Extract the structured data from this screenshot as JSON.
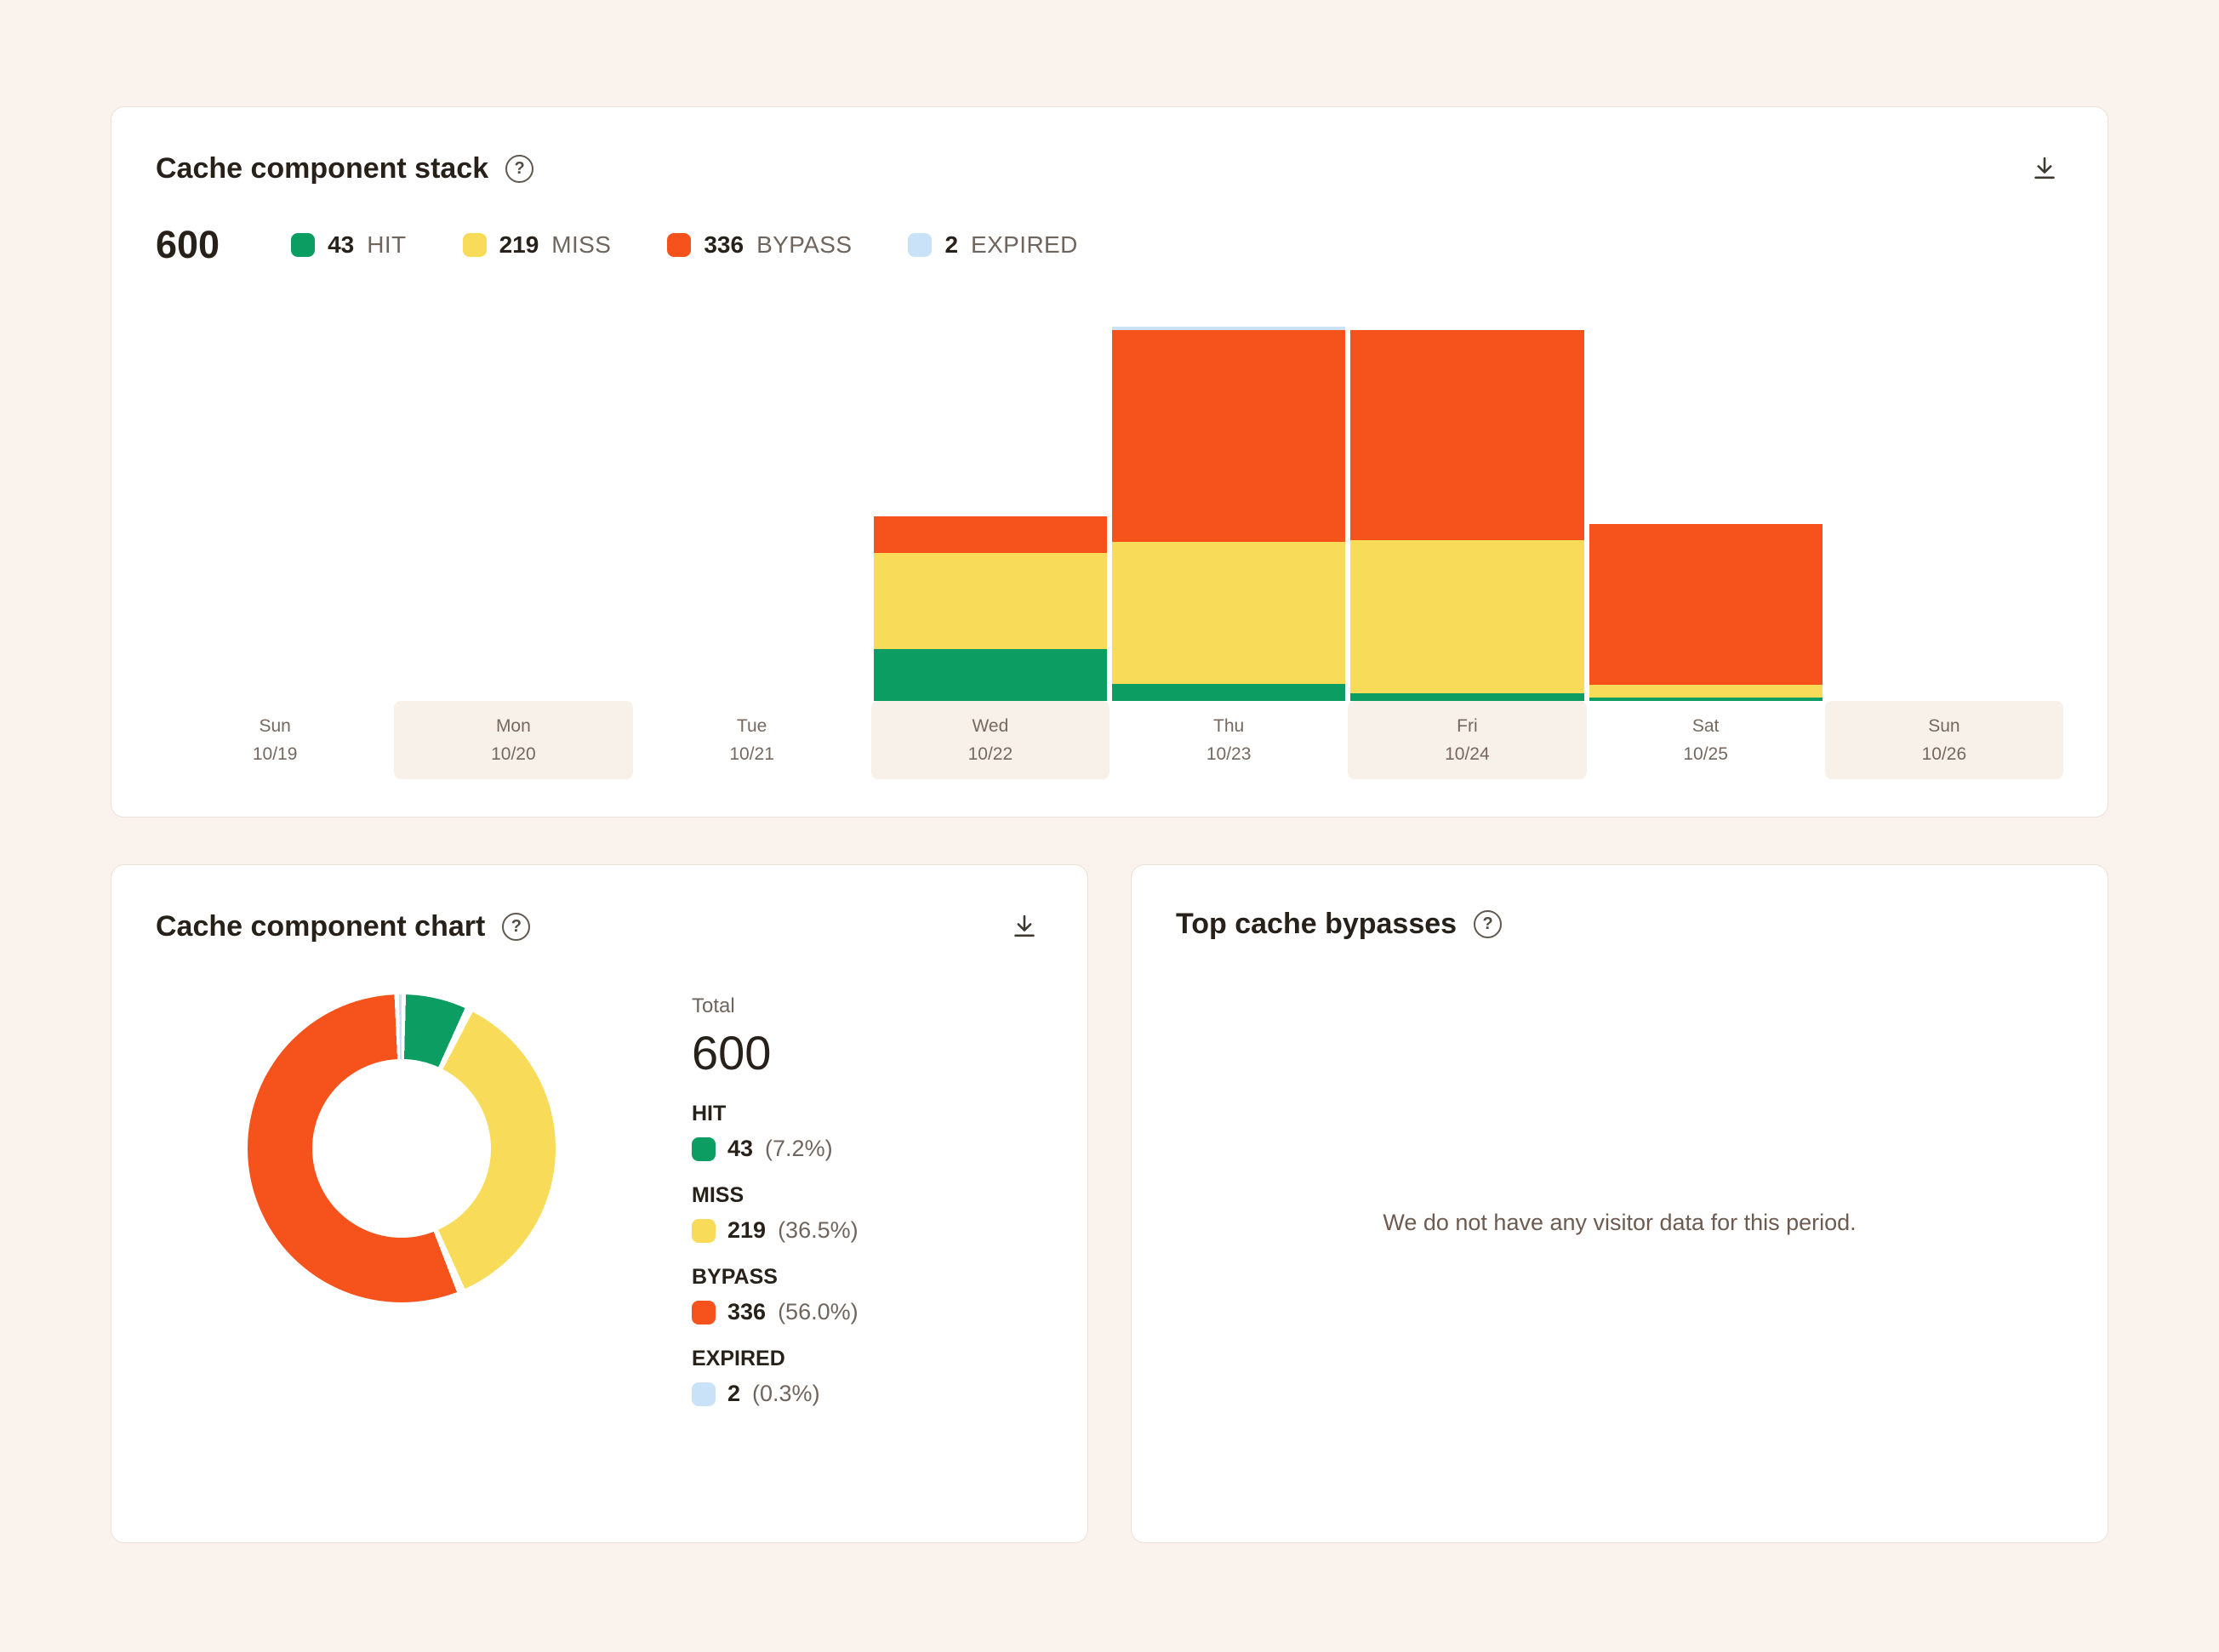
{
  "colors": {
    "hit": "#0C9D62",
    "miss": "#F8DB58",
    "bypass": "#F6521C",
    "expired": "#C9E2F8"
  },
  "stack_card": {
    "title": "Cache component stack",
    "total": "600",
    "legend": [
      {
        "value": "43",
        "label": "HIT",
        "color_key": "hit"
      },
      {
        "value": "219",
        "label": "MISS",
        "color_key": "miss"
      },
      {
        "value": "336",
        "label": "BYPASS",
        "color_key": "bypass"
      },
      {
        "value": "2",
        "label": "EXPIRED",
        "color_key": "expired"
      }
    ]
  },
  "donut_card": {
    "title": "Cache component chart",
    "total_label": "Total",
    "total": "600",
    "stats": [
      {
        "label": "HIT",
        "value": "43",
        "pct": "(7.2%)",
        "color_key": "hit"
      },
      {
        "label": "MISS",
        "value": "219",
        "pct": "(36.5%)",
        "color_key": "miss"
      },
      {
        "label": "BYPASS",
        "value": "336",
        "pct": "(56.0%)",
        "color_key": "bypass"
      },
      {
        "label": "EXPIRED",
        "value": "2",
        "pct": "(0.3%)",
        "color_key": "expired"
      }
    ]
  },
  "bypass_card": {
    "title": "Top cache bypasses",
    "message": "We do not have any visitor data for this period."
  },
  "chart_data": [
    {
      "type": "bar",
      "stacked": true,
      "title": "Cache component stack",
      "categories": [
        {
          "day": "Sun",
          "date": "10/19",
          "shaded": false
        },
        {
          "day": "Mon",
          "date": "10/20",
          "shaded": true
        },
        {
          "day": "Tue",
          "date": "10/21",
          "shaded": false
        },
        {
          "day": "Wed",
          "date": "10/22",
          "shaded": true
        },
        {
          "day": "Thu",
          "date": "10/23",
          "shaded": false
        },
        {
          "day": "Fri",
          "date": "10/24",
          "shaded": true
        },
        {
          "day": "Sat",
          "date": "10/25",
          "shaded": false
        },
        {
          "day": "Sun",
          "date": "10/26",
          "shaded": true
        }
      ],
      "series": [
        {
          "name": "HIT",
          "total": 43,
          "color_key": "hit",
          "values": [
            0,
            0,
            0,
            28,
            9,
            4,
            2,
            0
          ]
        },
        {
          "name": "MISS",
          "total": 219,
          "color_key": "miss",
          "values": [
            0,
            0,
            0,
            52,
            77,
            83,
            7,
            0
          ]
        },
        {
          "name": "BYPASS",
          "total": 336,
          "color_key": "bypass",
          "values": [
            0,
            0,
            0,
            20,
            115,
            114,
            87,
            0
          ]
        },
        {
          "name": "EXPIRED",
          "total": 2,
          "color_key": "expired",
          "values": [
            0,
            0,
            0,
            0,
            2,
            0,
            0,
            0
          ]
        }
      ],
      "grand_total": 600,
      "legend_position": "top"
    },
    {
      "type": "pie",
      "donut": true,
      "title": "Cache component chart",
      "total": 600,
      "slices": [
        {
          "name": "HIT",
          "value": 43,
          "pct": 7.2,
          "color_key": "hit"
        },
        {
          "name": "MISS",
          "value": 219,
          "pct": 36.5,
          "color_key": "miss"
        },
        {
          "name": "BYPASS",
          "value": 336,
          "pct": 56.0,
          "color_key": "bypass"
        },
        {
          "name": "EXPIRED",
          "value": 2,
          "pct": 0.3,
          "color_key": "expired"
        }
      ],
      "legend_position": "right"
    }
  ]
}
